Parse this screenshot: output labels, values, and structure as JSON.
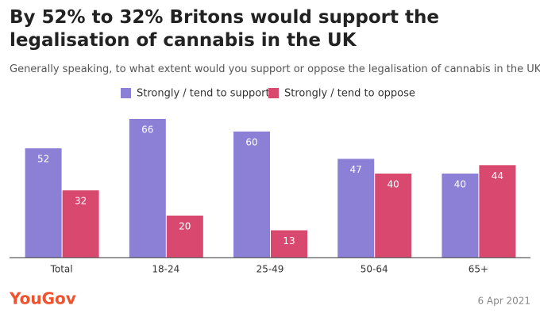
{
  "chart_data": {
    "type": "bar",
    "title": "By 52% to 32% Britons would support the legalisation of cannabis in the UK",
    "subtitle": "Generally speaking, to what extent would you support or oppose the legalisation of cannabis in the UK? %",
    "categories": [
      "Total",
      "18-24",
      "25-49",
      "50-64",
      "65+"
    ],
    "series": [
      {
        "name": "Strongly / tend to support",
        "color": "#8b7fd6",
        "values": [
          52,
          66,
          60,
          47,
          40
        ]
      },
      {
        "name": "Strongly / tend to oppose",
        "color": "#d9486f",
        "values": [
          32,
          20,
          13,
          40,
          44
        ]
      }
    ],
    "logo": "YouGov",
    "date": "6 Apr 2021"
  }
}
